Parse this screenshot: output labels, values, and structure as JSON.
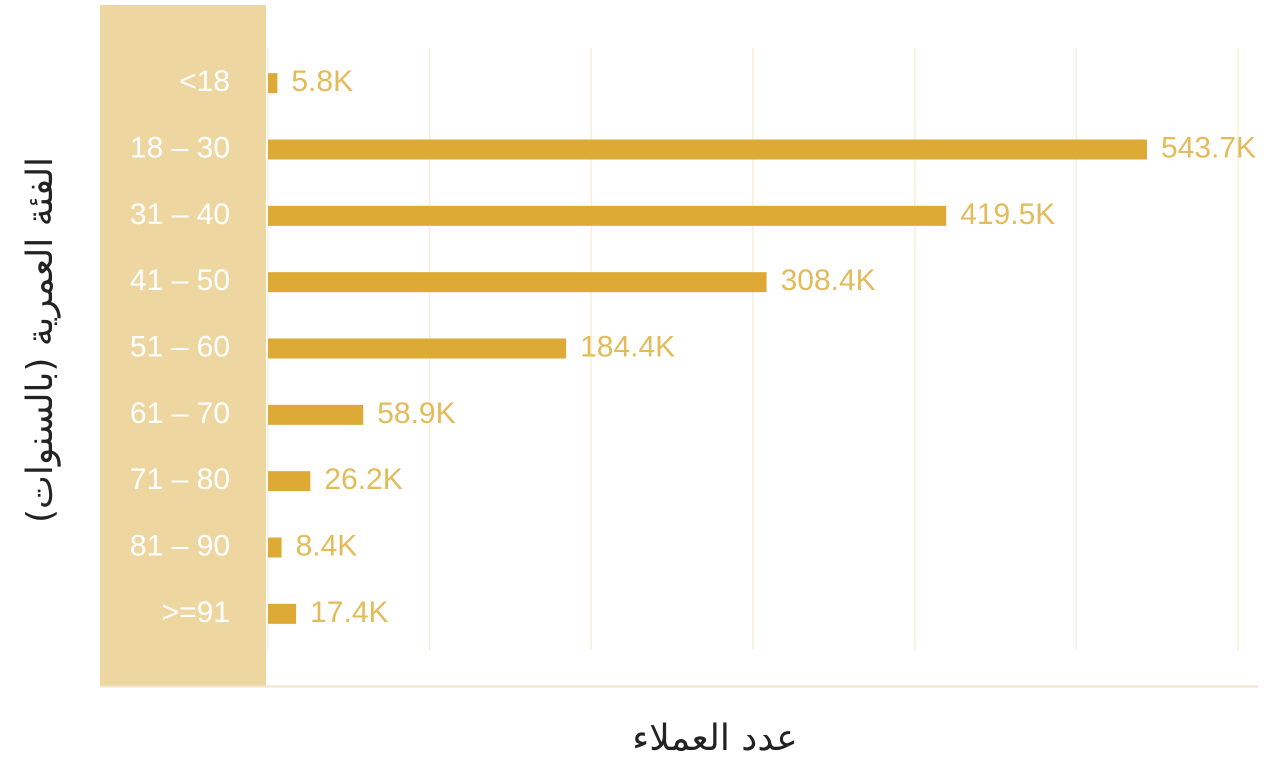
{
  "chart_data": {
    "type": "bar",
    "orientation": "horizontal",
    "x_label": "عدد العملاء",
    "y_label": "الفئة العمرية (بالسنوات)",
    "categories": [
      "<18",
      "18 – 30",
      "31 – 40",
      "41 – 50",
      "51 – 60",
      "61 – 70",
      "71 – 80",
      "81 – 90",
      ">=91"
    ],
    "values": [
      5800,
      543700,
      419500,
      308400,
      184400,
      58900,
      26200,
      8400,
      17400
    ],
    "value_labels": [
      "5.8K",
      "543.7K",
      "419.5K",
      "308.4K",
      "184.4K",
      "58.9K",
      "26.2K",
      "8.4K",
      "17.4K"
    ],
    "color": "#dcaa35",
    "label_color": "#e3bb5a",
    "xlim": [
      0,
      600000
    ],
    "xticks": [
      0,
      100000,
      200000,
      300000,
      400000,
      500000,
      600000
    ],
    "grid": true
  }
}
